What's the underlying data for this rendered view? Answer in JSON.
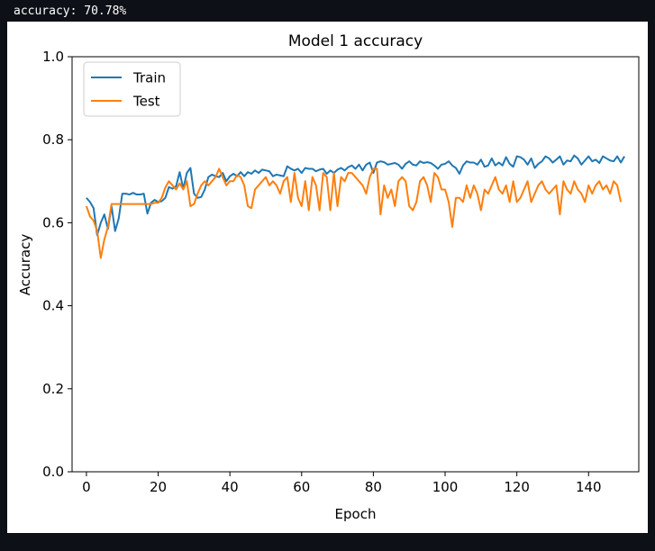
{
  "output_line": "accuracy: 70.78%",
  "chart_data": {
    "type": "line",
    "title": "Model 1 accuracy",
    "xlabel": "Epoch",
    "ylabel": "Accuracy",
    "xlim": [
      -4,
      154
    ],
    "ylim": [
      0.0,
      1.0
    ],
    "xticks": [
      0,
      20,
      40,
      60,
      80,
      100,
      120,
      140
    ],
    "xtick_labels": [
      "0",
      "20",
      "40",
      "60",
      "80",
      "100",
      "120",
      "140"
    ],
    "yticks": [
      0.0,
      0.2,
      0.4,
      0.6,
      0.8,
      1.0
    ],
    "ytick_labels": [
      "0.0",
      "0.2",
      "0.4",
      "0.6",
      "0.8",
      "1.0"
    ],
    "grid": false,
    "legend_position": "top-left",
    "series": [
      {
        "name": "Train",
        "color": "#1f77b4",
        "x_start": 0,
        "values": [
          0.66,
          0.65,
          0.635,
          0.57,
          0.6,
          0.62,
          0.585,
          0.64,
          0.58,
          0.61,
          0.67,
          0.67,
          0.668,
          0.672,
          0.668,
          0.668,
          0.67,
          0.622,
          0.648,
          0.655,
          0.65,
          0.652,
          0.66,
          0.686,
          0.682,
          0.688,
          0.722,
          0.682,
          0.72,
          0.732,
          0.67,
          0.66,
          0.662,
          0.68,
          0.71,
          0.716,
          0.712,
          0.71,
          0.72,
          0.7,
          0.712,
          0.718,
          0.712,
          0.722,
          0.712,
          0.722,
          0.718,
          0.726,
          0.72,
          0.728,
          0.726,
          0.724,
          0.712,
          0.716,
          0.714,
          0.712,
          0.736,
          0.73,
          0.726,
          0.73,
          0.72,
          0.732,
          0.73,
          0.73,
          0.724,
          0.728,
          0.73,
          0.718,
          0.726,
          0.72,
          0.728,
          0.732,
          0.726,
          0.734,
          0.738,
          0.73,
          0.74,
          0.726,
          0.74,
          0.745,
          0.72,
          0.745,
          0.748,
          0.746,
          0.74,
          0.742,
          0.744,
          0.74,
          0.73,
          0.742,
          0.748,
          0.74,
          0.738,
          0.748,
          0.744,
          0.746,
          0.744,
          0.738,
          0.73,
          0.74,
          0.742,
          0.748,
          0.738,
          0.732,
          0.718,
          0.738,
          0.748,
          0.745,
          0.745,
          0.74,
          0.752,
          0.735,
          0.738,
          0.755,
          0.738,
          0.745,
          0.738,
          0.758,
          0.742,
          0.735,
          0.76,
          0.758,
          0.752,
          0.74,
          0.755,
          0.732,
          0.742,
          0.748,
          0.76,
          0.755,
          0.745,
          0.752,
          0.76,
          0.74,
          0.75,
          0.748,
          0.762,
          0.755,
          0.74,
          0.75,
          0.76,
          0.748,
          0.752,
          0.744,
          0.76,
          0.755,
          0.75,
          0.748,
          0.76,
          0.745,
          0.76
        ]
      },
      {
        "name": "Test",
        "color": "#ff7f0e",
        "x_start": 0,
        "values": [
          0.64,
          0.615,
          0.605,
          0.58,
          0.515,
          0.56,
          0.59,
          0.645,
          0.645,
          0.645,
          0.645,
          0.645,
          0.645,
          0.645,
          0.645,
          0.645,
          0.645,
          0.645,
          0.645,
          0.648,
          0.648,
          0.66,
          0.685,
          0.7,
          0.69,
          0.68,
          0.695,
          0.68,
          0.7,
          0.64,
          0.645,
          0.67,
          0.69,
          0.7,
          0.69,
          0.7,
          0.71,
          0.73,
          0.71,
          0.69,
          0.7,
          0.7,
          0.715,
          0.71,
          0.69,
          0.64,
          0.635,
          0.68,
          0.69,
          0.7,
          0.71,
          0.69,
          0.7,
          0.69,
          0.67,
          0.7,
          0.71,
          0.65,
          0.72,
          0.66,
          0.64,
          0.7,
          0.63,
          0.71,
          0.69,
          0.63,
          0.72,
          0.71,
          0.63,
          0.72,
          0.64,
          0.71,
          0.7,
          0.72,
          0.72,
          0.71,
          0.7,
          0.69,
          0.67,
          0.71,
          0.73,
          0.73,
          0.62,
          0.69,
          0.66,
          0.68,
          0.64,
          0.7,
          0.71,
          0.7,
          0.64,
          0.63,
          0.65,
          0.7,
          0.71,
          0.69,
          0.65,
          0.72,
          0.71,
          0.68,
          0.68,
          0.65,
          0.59,
          0.66,
          0.66,
          0.65,
          0.69,
          0.66,
          0.69,
          0.67,
          0.63,
          0.68,
          0.67,
          0.69,
          0.71,
          0.68,
          0.67,
          0.69,
          0.65,
          0.7,
          0.65,
          0.66,
          0.68,
          0.7,
          0.65,
          0.67,
          0.69,
          0.7,
          0.68,
          0.67,
          0.68,
          0.69,
          0.62,
          0.7,
          0.68,
          0.67,
          0.7,
          0.68,
          0.67,
          0.65,
          0.69,
          0.67,
          0.69,
          0.7,
          0.68,
          0.69,
          0.67,
          0.7,
          0.69,
          0.65
        ]
      }
    ]
  }
}
